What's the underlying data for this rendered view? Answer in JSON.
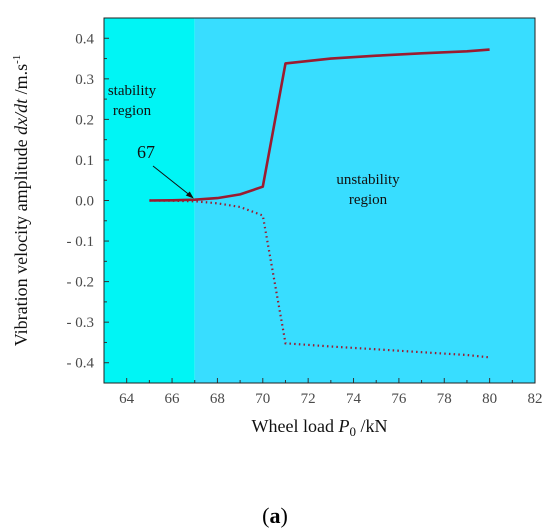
{
  "chart_data": {
    "type": "line",
    "xlabel_main": "Wheel load ",
    "xlabel_var": "P",
    "xlabel_sub": "0",
    "xlabel_unit": " /kN",
    "ylabel_main": "Vibration velocity amplitude ",
    "ylabel_var": "dx/dt",
    "ylabel_unit": " /m.s",
    "ylabel_sup": "-1",
    "xlim": [
      63,
      82
    ],
    "ylim": [
      -0.45,
      0.45
    ],
    "x_ticks": [
      "64",
      "66",
      "68",
      "70",
      "72",
      "74",
      "76",
      "78",
      "80",
      "82"
    ],
    "y_ticks": [
      "0.4",
      "0.3",
      "0.2",
      "0.1",
      "0.0",
      "-0.1",
      "-0.2",
      "-0.3",
      "-0.4"
    ],
    "regions": [
      {
        "label_line1": "stability",
        "label_line2": "region",
        "x_range": [
          63,
          67
        ],
        "color": "#00f5f5"
      },
      {
        "label_line1": "unstability",
        "label_line2": "region",
        "x_range": [
          67,
          82
        ],
        "color": "#38ddff"
      }
    ],
    "annotation": {
      "text": "67",
      "x": 67,
      "y": 0
    },
    "series": [
      {
        "style": "solid",
        "color": "#9b1b30",
        "x": [
          65,
          66,
          67,
          68,
          69,
          70,
          71,
          73,
          75,
          77,
          79,
          80
        ],
        "y": [
          0.0,
          0.0005,
          0.002,
          0.006,
          0.015,
          0.034,
          0.338,
          0.35,
          0.357,
          0.363,
          0.368,
          0.372
        ]
      },
      {
        "style": "dotted",
        "color": "#9b1b30",
        "x": [
          65,
          66,
          67,
          68,
          69,
          70,
          71,
          73,
          75,
          77,
          79,
          80
        ],
        "y": [
          0.0,
          -0.0005,
          -0.002,
          -0.007,
          -0.016,
          -0.037,
          -0.352,
          -0.36,
          -0.367,
          -0.374,
          -0.381,
          -0.387
        ]
      }
    ]
  },
  "caption_text": "a"
}
